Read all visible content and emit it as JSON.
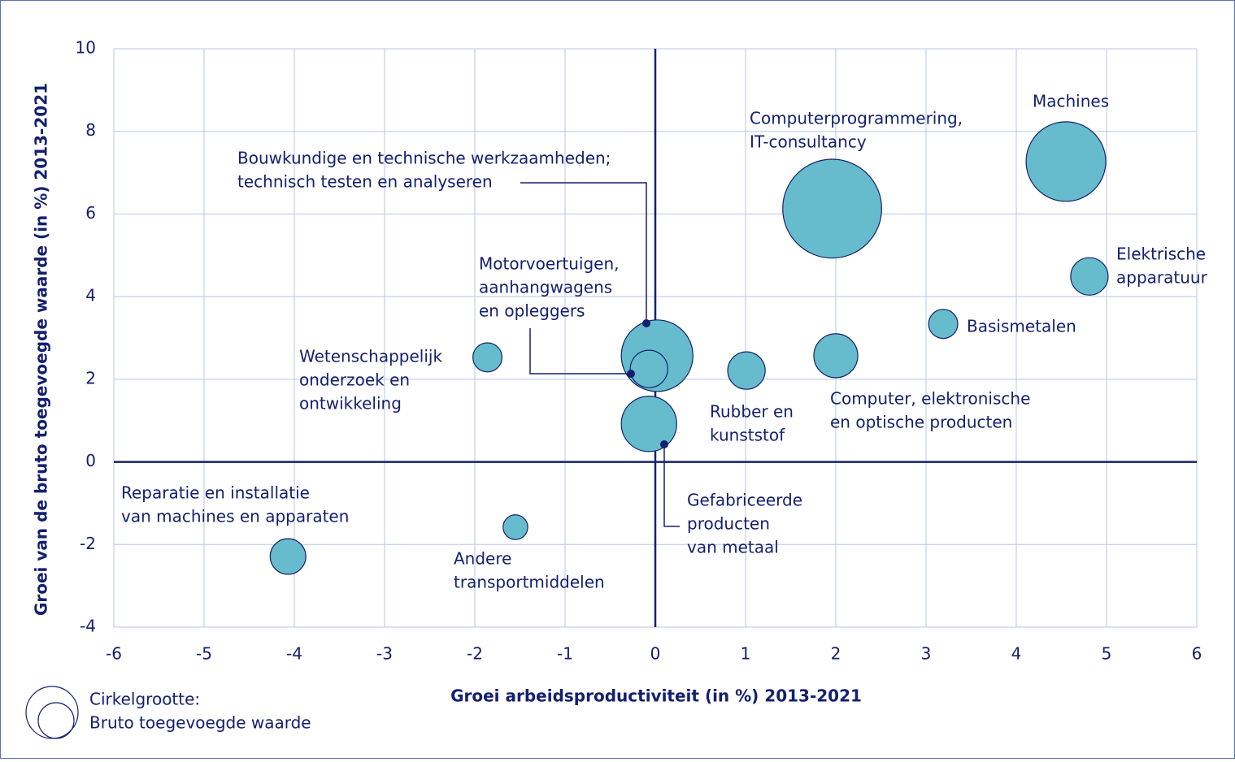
{
  "chart_data": {
    "type": "bubble",
    "xlabel": "Groei arbeidsproductiviteit (in %) 2013-2021",
    "ylabel": "Groei van de bruto toegevoegde waarde (in %) 2013-2021",
    "xlim": [
      -6,
      6
    ],
    "xticks": [
      -6,
      -5,
      -4,
      -3,
      -2,
      -1,
      0,
      1,
      2,
      3,
      4,
      5,
      6
    ],
    "ylim": [
      -4,
      10
    ],
    "yticks": [
      -4,
      -2,
      0,
      2,
      4,
      6,
      8,
      10
    ],
    "grid": true,
    "color": "#66bccc",
    "labels": [
      [
        "Machines"
      ],
      [
        "Computerprogrammering,",
        "IT-consultancy"
      ],
      [
        "Elektrische",
        "apparatuur"
      ],
      [
        "Basismetalen"
      ],
      [
        "Computer, elektronische",
        "en optische producten"
      ],
      [
        "Rubber en",
        "kunststof"
      ],
      [
        "Bouwkundige en technische werkzaamheden;",
        "technisch testen en analyseren"
      ],
      [
        "Motorvoertuigen,",
        "aanhangwagens",
        "en opleggers"
      ],
      [
        "Gefabriceerde",
        "producten",
        "van metaal"
      ],
      [
        "Wetenschappelijk",
        "onderzoek en",
        "ontwikkeling"
      ],
      [
        "Andere",
        "transportmiddelen"
      ],
      [
        "Reparatie en installatie",
        "van machines en apparaten"
      ]
    ],
    "x": [
      4.55,
      1.96,
      4.81,
      3.19,
      2.0,
      1.01,
      0.02,
      -0.07,
      -0.07,
      -1.86,
      -1.55,
      -4.07
    ],
    "values": [
      7.27,
      6.13,
      4.49,
      3.34,
      2.57,
      2.21,
      2.57,
      2.25,
      0.92,
      2.53,
      -1.58,
      -2.29
    ],
    "sizes": [
      24,
      37,
      5.3,
      3.2,
      7.3,
      5.3,
      19.4,
      5.3,
      11.6,
      3.2,
      2.3,
      4.8
    ],
    "legend": [
      "Cirkelgrootte:",
      "Bruto toegevoegde waarde"
    ]
  }
}
